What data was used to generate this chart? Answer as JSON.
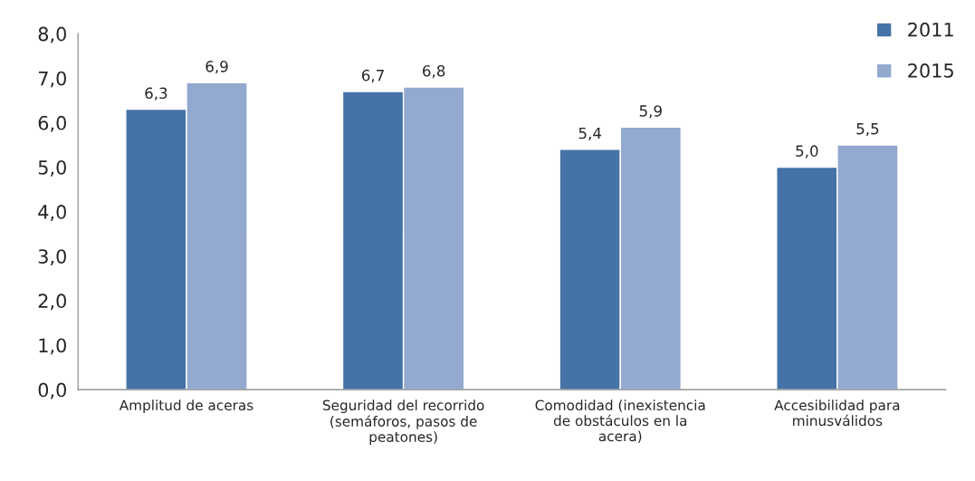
{
  "chart_data": {
    "type": "bar",
    "categories": [
      "Amplitud de aceras",
      "Seguridad del recorrido (semáforos, pasos de peatones)",
      "Comodidad (inexistencia de obstáculos en la acera)",
      "Accesibilidad para minusválidos"
    ],
    "series": [
      {
        "name": "2011",
        "color": "#4572a7",
        "values": [
          6.3,
          6.7,
          5.4,
          5.0
        ],
        "value_labels": [
          "6,3",
          "6,7",
          "5,4",
          "5,0"
        ]
      },
      {
        "name": "2015",
        "color": "#93a9cf",
        "values": [
          6.9,
          6.8,
          5.9,
          5.5
        ],
        "value_labels": [
          "6,9",
          "6,8",
          "5,9",
          "5,5"
        ]
      }
    ],
    "ylim": [
      0,
      8
    ],
    "yticks": [
      {
        "value": 0,
        "label": "0,0"
      },
      {
        "value": 1,
        "label": "1,0"
      },
      {
        "value": 2,
        "label": "2,0"
      },
      {
        "value": 3,
        "label": "3,0"
      },
      {
        "value": 4,
        "label": "4,0"
      },
      {
        "value": 5,
        "label": "5,0"
      },
      {
        "value": 6,
        "label": "6,0"
      },
      {
        "value": 7,
        "label": "7,0"
      },
      {
        "value": 8,
        "label": "8,0"
      }
    ],
    "grid": false,
    "legend": "top right"
  }
}
